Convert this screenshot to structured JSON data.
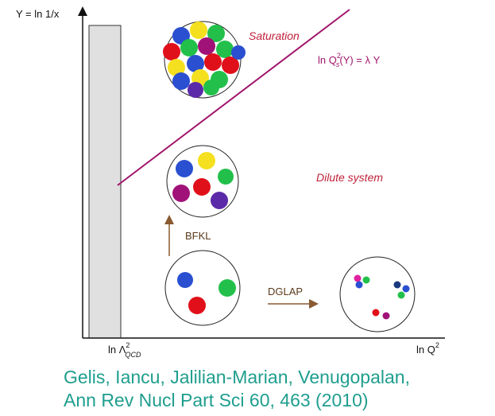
{
  "y_axis_label": "Y = ln 1/x",
  "x_axis_label": {
    "parts": [
      "ln Q",
      "2"
    ]
  },
  "lambda_label": {
    "parts": [
      "ln Λ",
      "2",
      "QCD"
    ]
  },
  "saturation_label": "Saturation",
  "saturation_line_label": {
    "parts": [
      "ln Q",
      "2",
      "s",
      "(Y) = λ Y"
    ]
  },
  "dilute_label": "Dilute system",
  "bfkl_label": "BFKL",
  "dglap_label": "DGLAP",
  "citation": [
    "Gelis, Iancu, Jalilian-Marian, Venugopalan,",
    "Ann Rev Nucl Part Sci 60, 463 (2010)"
  ]
}
